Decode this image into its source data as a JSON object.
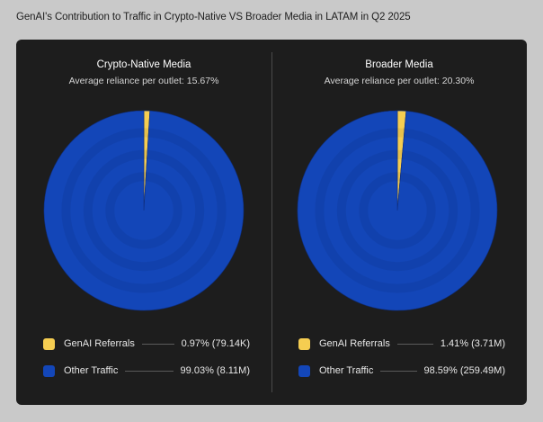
{
  "page": {
    "title": "GenAI's Contribution to Traffic in Crypto-Native VS Broader Media in LATAM in Q2 2025"
  },
  "colors": {
    "genai": "#f5cd51",
    "other": "#1346b8",
    "background": "#c9c9c9",
    "card": "#1d1d1d"
  },
  "chart_data": [
    {
      "type": "pie",
      "title": "Crypto-Native Media",
      "subtitle_label": "Average reliance per outlet:",
      "subtitle_value": "15.67%",
      "slices": [
        {
          "label": "GenAI Referrals",
          "value": 0.97,
          "display": "0.97% (79.14K)",
          "color": "#f5cd51"
        },
        {
          "label": "Other Traffic",
          "value": 99.03,
          "display": "99.03% (8.11M)",
          "color": "#1346b8"
        }
      ]
    },
    {
      "type": "pie",
      "title": "Broader Media",
      "subtitle_label": "Average reliance per outlet:",
      "subtitle_value": "20.30%",
      "slices": [
        {
          "label": "GenAI Referrals",
          "value": 1.41,
          "display": "1.41% (3.71M)",
          "color": "#f5cd51"
        },
        {
          "label": "Other Traffic",
          "value": 98.59,
          "display": "98.59% (259.49M)",
          "color": "#1346b8"
        }
      ]
    }
  ]
}
